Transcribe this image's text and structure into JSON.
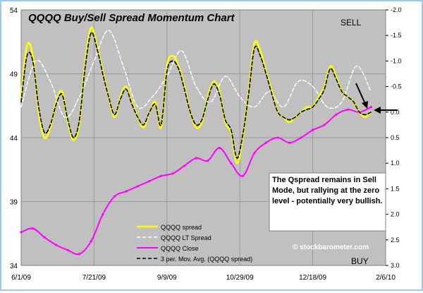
{
  "chart_data": {
    "type": "line",
    "title": "QQQQ Buy/Sell Spread Momentum Chart",
    "x_ticks": [
      "6/1/09",
      "7/21/09",
      "9/9/09",
      "10/29/09",
      "12/18/09",
      "2/6/10"
    ],
    "y_left": {
      "ticks": [
        54,
        49,
        44,
        39,
        34
      ],
      "ylim": [
        34,
        54
      ]
    },
    "y_right": {
      "ticks": [
        "-2.0",
        "-1.5",
        "-1.0",
        "-0.5",
        "0.0",
        "0.5",
        "1.0",
        "1.5",
        "2.0",
        "2.5",
        "3.0"
      ],
      "ylim": [
        -2.0,
        3.0
      ],
      "inverted": true
    },
    "legend": [
      "QQQQ spread",
      "QQQQ LT Spread",
      "QQQQ Close",
      "3 per. Mov. Avg. (QQQQ spread)"
    ],
    "legend_position": "bottom-center",
    "grid": true,
    "colors": {
      "spread": "#ffff00",
      "lt_spread": "#ffffff",
      "close": "#ff00ff",
      "mov_avg": "#000000",
      "plot_bg": "#c0c0c0"
    },
    "series": [
      {
        "name": "QQQQ spread",
        "axis": "right",
        "x": [
          "2009-06-01",
          "2009-06-05",
          "2009-06-09",
          "2009-06-13",
          "2009-06-17",
          "2009-06-21",
          "2009-06-25",
          "2009-06-29",
          "2009-07-03",
          "2009-07-07",
          "2009-07-11",
          "2009-07-15",
          "2009-07-19",
          "2009-07-23",
          "2009-07-27",
          "2009-07-31",
          "2009-08-04",
          "2009-08-08",
          "2009-08-12",
          "2009-08-16",
          "2009-08-20",
          "2009-08-24",
          "2009-08-28",
          "2009-09-01",
          "2009-09-05",
          "2009-09-09",
          "2009-09-13",
          "2009-09-17",
          "2009-09-21",
          "2009-09-25",
          "2009-09-29",
          "2009-10-03",
          "2009-10-07",
          "2009-10-11",
          "2009-10-15",
          "2009-10-19",
          "2009-10-23",
          "2009-10-27",
          "2009-10-31",
          "2009-11-04",
          "2009-11-08",
          "2009-11-12",
          "2009-11-16",
          "2009-11-20",
          "2009-11-24",
          "2009-11-28",
          "2009-12-02",
          "2009-12-06",
          "2009-12-10",
          "2009-12-14",
          "2009-12-18",
          "2009-12-22",
          "2009-12-26",
          "2009-12-30",
          "2010-01-03",
          "2010-01-07",
          "2010-01-11",
          "2010-01-15",
          "2010-01-19",
          "2010-01-23",
          "2010-01-27"
        ],
        "y": [
          -0.3,
          -1.3,
          -1.1,
          0.0,
          0.5,
          0.3,
          -0.2,
          -0.4,
          0.2,
          0.55,
          0.2,
          -1.0,
          -1.65,
          -1.3,
          -0.8,
          -0.3,
          0.1,
          -0.3,
          -0.5,
          -0.2,
          0.1,
          0.3,
          0.0,
          -0.2,
          0.3,
          -0.9,
          -1.1,
          -0.9,
          -0.5,
          0.0,
          0.3,
          0.2,
          -0.3,
          -0.6,
          -0.4,
          0.2,
          0.4,
          1.0,
          0.5,
          -0.4,
          -1.35,
          -1.2,
          -0.8,
          -0.4,
          0.0,
          0.1,
          0.2,
          0.1,
          0.0,
          -0.1,
          -0.1,
          -0.3,
          -0.5,
          -0.9,
          -0.7,
          -0.4,
          -0.3,
          -0.2,
          0.0,
          0.1,
          0.0
        ]
      },
      {
        "name": "QQQQ LT Spread",
        "axis": "right",
        "x": [
          "2009-06-01",
          "2009-06-11",
          "2009-06-21",
          "2009-07-01",
          "2009-07-11",
          "2009-07-21",
          "2009-07-31",
          "2009-08-10",
          "2009-08-20",
          "2009-08-30",
          "2009-09-09",
          "2009-09-19",
          "2009-09-29",
          "2009-10-09",
          "2009-10-19",
          "2009-10-29",
          "2009-11-08",
          "2009-11-18",
          "2009-11-28",
          "2009-12-08",
          "2009-12-18",
          "2009-12-28",
          "2010-01-07",
          "2010-01-17",
          "2010-01-27"
        ],
        "y": [
          -0.1,
          -1.0,
          -0.6,
          0.1,
          -0.3,
          -1.0,
          -1.6,
          -0.9,
          -0.1,
          -0.3,
          -0.7,
          -1.2,
          -0.5,
          -0.2,
          -0.7,
          -0.3,
          -0.1,
          -0.4,
          -0.1,
          -0.6,
          -0.5,
          -0.1,
          -0.2,
          -0.9,
          -0.4
        ]
      },
      {
        "name": "QQQQ Close",
        "axis": "left",
        "x": [
          "2009-06-01",
          "2009-06-09",
          "2009-06-17",
          "2009-06-25",
          "2009-07-03",
          "2009-07-11",
          "2009-07-19",
          "2009-07-27",
          "2009-08-04",
          "2009-08-12",
          "2009-08-20",
          "2009-08-28",
          "2009-09-05",
          "2009-09-13",
          "2009-09-21",
          "2009-09-29",
          "2009-10-07",
          "2009-10-15",
          "2009-10-23",
          "2009-10-31",
          "2009-11-08",
          "2009-11-16",
          "2009-11-24",
          "2009-12-02",
          "2009-12-10",
          "2009-12-18",
          "2009-12-26",
          "2010-01-03",
          "2010-01-11",
          "2010-01-19",
          "2010-01-27"
        ],
        "y": [
          36.6,
          36.9,
          36.2,
          35.6,
          35.2,
          34.9,
          35.9,
          38.0,
          39.4,
          39.8,
          40.2,
          40.6,
          41.0,
          41.2,
          41.8,
          42.4,
          42.2,
          43.2,
          42.0,
          41.0,
          42.8,
          43.6,
          44.0,
          43.6,
          44.0,
          44.6,
          45.0,
          45.8,
          46.2,
          46.0,
          46.4
        ]
      },
      {
        "name": "3 per. Mov. Avg. (QQQQ spread)",
        "axis": "right",
        "x": [
          "2009-06-01",
          "2009-06-05",
          "2009-06-09",
          "2009-06-13",
          "2009-06-17",
          "2009-06-21",
          "2009-06-25",
          "2009-06-29",
          "2009-07-03",
          "2009-07-07",
          "2009-07-11",
          "2009-07-15",
          "2009-07-19",
          "2009-07-23",
          "2009-07-27",
          "2009-07-31",
          "2009-08-04",
          "2009-08-08",
          "2009-08-12",
          "2009-08-16",
          "2009-08-20",
          "2009-08-24",
          "2009-08-28",
          "2009-09-01",
          "2009-09-05",
          "2009-09-09",
          "2009-09-13",
          "2009-09-17",
          "2009-09-21",
          "2009-09-25",
          "2009-09-29",
          "2009-10-03",
          "2009-10-07",
          "2009-10-11",
          "2009-10-15",
          "2009-10-19",
          "2009-10-23",
          "2009-10-27",
          "2009-10-31",
          "2009-11-04",
          "2009-11-08",
          "2009-11-12",
          "2009-11-16",
          "2009-11-20",
          "2009-11-24",
          "2009-11-28",
          "2009-12-02",
          "2009-12-06",
          "2009-12-10",
          "2009-12-14",
          "2009-12-18",
          "2009-12-22",
          "2009-12-26",
          "2009-12-30",
          "2010-01-03",
          "2010-01-07",
          "2010-01-11",
          "2010-01-15",
          "2010-01-19",
          "2010-01-23",
          "2010-01-27"
        ],
        "y": [
          -0.2,
          -1.1,
          -1.0,
          -0.1,
          0.4,
          0.25,
          -0.15,
          -0.35,
          0.15,
          0.5,
          0.15,
          -0.9,
          -1.55,
          -1.25,
          -0.75,
          -0.3,
          0.05,
          -0.25,
          -0.45,
          -0.15,
          0.1,
          0.25,
          0.0,
          -0.15,
          0.25,
          -0.8,
          -1.0,
          -0.85,
          -0.45,
          0.0,
          0.25,
          0.15,
          -0.25,
          -0.55,
          -0.35,
          0.15,
          0.35,
          0.9,
          0.45,
          -0.35,
          -1.25,
          -1.1,
          -0.75,
          -0.35,
          0.0,
          0.1,
          0.15,
          0.1,
          0.0,
          -0.05,
          -0.1,
          -0.25,
          -0.45,
          -0.85,
          -0.65,
          -0.4,
          -0.3,
          -0.2,
          0.0,
          0.05,
          0.0
        ]
      }
    ],
    "annotations": {
      "sell_label": "SELL",
      "buy_label": "BUY",
      "callout": "The Qspread remains in Sell Mode, but rallying at the zero level - potentially very bullish.",
      "credit": "© stockbarometer.com"
    }
  }
}
